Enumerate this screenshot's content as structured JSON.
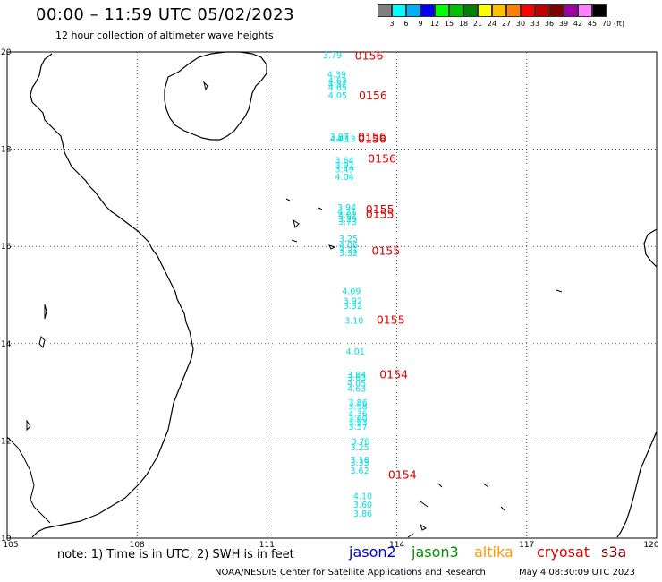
{
  "header": {
    "title": "00:00 – 11:59 UTC 05/02/2023",
    "subtitle": "12 hour collection of altimeter wave heights"
  },
  "color_scale": {
    "unit_label": "(ft)",
    "colors": [
      "#808080",
      "#00ffff",
      "#00b0ff",
      "#0000ff",
      "#00ff00",
      "#00c000",
      "#008000",
      "#ffff00",
      "#ffc000",
      "#ff8000",
      "#ff0000",
      "#c00000",
      "#800000",
      "#a000a0",
      "#ff80ff",
      "#000000"
    ],
    "labels": [
      "3",
      "6",
      "9",
      "12",
      "15",
      "18",
      "21",
      "24",
      "27",
      "30",
      "33",
      "36",
      "39",
      "42",
      "45",
      "70"
    ]
  },
  "axes": {
    "lon_ticks": [
      "105",
      "108",
      "111",
      "114",
      "117",
      "120"
    ],
    "lat_ticks": [
      "20",
      "18",
      "16",
      "14",
      "12",
      "10"
    ]
  },
  "observations": [
    {
      "v": "3.79",
      "lon": 112.5,
      "lat": 19.93
    },
    {
      "v": "4.39",
      "lon": 112.6,
      "lat": 19.53
    },
    {
      "v": "4.63",
      "lon": 112.62,
      "lat": 19.4
    },
    {
      "v": "4.51",
      "lon": 112.62,
      "lat": 19.33
    },
    {
      "v": "4.65",
      "lon": 112.62,
      "lat": 19.26
    },
    {
      "v": "4.05",
      "lon": 112.62,
      "lat": 19.1
    },
    {
      "v": "3.97",
      "lon": 112.66,
      "lat": 18.25
    },
    {
      "v": "4.03",
      "lon": 112.66,
      "lat": 18.2
    },
    {
      "v": "4.13",
      "lon": 112.82,
      "lat": 18.2
    },
    {
      "v": "3.64",
      "lon": 112.78,
      "lat": 17.76
    },
    {
      "v": "3.92",
      "lon": 112.78,
      "lat": 17.66
    },
    {
      "v": "3.49",
      "lon": 112.78,
      "lat": 17.58
    },
    {
      "v": "4.04",
      "lon": 112.78,
      "lat": 17.42
    },
    {
      "v": "3.94",
      "lon": 112.83,
      "lat": 16.8
    },
    {
      "v": "4.21",
      "lon": 112.83,
      "lat": 16.7
    },
    {
      "v": "4.02",
      "lon": 112.85,
      "lat": 16.64
    },
    {
      "v": "3.29",
      "lon": 112.85,
      "lat": 16.56
    },
    {
      "v": "3.73",
      "lon": 112.85,
      "lat": 16.5
    },
    {
      "v": "3.25",
      "lon": 112.87,
      "lat": 16.15
    },
    {
      "v": "4.06",
      "lon": 112.87,
      "lat": 16.02
    },
    {
      "v": "3.21",
      "lon": 112.87,
      "lat": 15.92
    },
    {
      "v": "3.32",
      "lon": 112.87,
      "lat": 15.86
    },
    {
      "v": "4.09",
      "lon": 112.94,
      "lat": 15.07
    },
    {
      "v": "3.92",
      "lon": 112.97,
      "lat": 14.87
    },
    {
      "v": "3.32",
      "lon": 112.97,
      "lat": 14.77
    },
    {
      "v": "3.10",
      "lon": 113.0,
      "lat": 14.47
    },
    {
      "v": "4.01",
      "lon": 113.03,
      "lat": 13.83
    },
    {
      "v": "3.84",
      "lon": 113.06,
      "lat": 13.35
    },
    {
      "v": "3.63",
      "lon": 113.06,
      "lat": 13.3
    },
    {
      "v": "4.05",
      "lon": 113.06,
      "lat": 13.18
    },
    {
      "v": "4.63",
      "lon": 113.06,
      "lat": 13.07
    },
    {
      "v": "3.86",
      "lon": 113.09,
      "lat": 12.78
    },
    {
      "v": "3.98",
      "lon": 113.09,
      "lat": 12.7
    },
    {
      "v": "4.36",
      "lon": 113.09,
      "lat": 12.55
    },
    {
      "v": "3.60",
      "lon": 113.09,
      "lat": 12.45
    },
    {
      "v": "3.93",
      "lon": 113.09,
      "lat": 12.38
    },
    {
      "v": "3.57",
      "lon": 113.09,
      "lat": 12.28
    },
    {
      "v": "3.78",
      "lon": 113.15,
      "lat": 11.98
    },
    {
      "v": "3.25",
      "lon": 113.13,
      "lat": 11.86
    },
    {
      "v": "3.18",
      "lon": 113.13,
      "lat": 11.6
    },
    {
      "v": "3.35",
      "lon": 113.13,
      "lat": 11.55
    },
    {
      "v": "3.62",
      "lon": 113.13,
      "lat": 11.38
    },
    {
      "v": "4.10",
      "lon": 113.2,
      "lat": 10.86
    },
    {
      "v": "3.60",
      "lon": 113.2,
      "lat": 10.68
    },
    {
      "v": "3.86",
      "lon": 113.2,
      "lat": 10.5
    }
  ],
  "passes": [
    {
      "id": "0156",
      "lon": 113.03,
      "lat": 19.92
    },
    {
      "id": "0156",
      "lon": 113.12,
      "lat": 19.1
    },
    {
      "id": "0156",
      "lon": 113.1,
      "lat": 18.25
    },
    {
      "id": "0156",
      "lon": 113.1,
      "lat": 18.2
    },
    {
      "id": "0156",
      "lon": 113.33,
      "lat": 17.8
    },
    {
      "id": "0155",
      "lon": 113.28,
      "lat": 16.76
    },
    {
      "id": "0155",
      "lon": 113.28,
      "lat": 16.66
    },
    {
      "id": "0155",
      "lon": 113.42,
      "lat": 15.9
    },
    {
      "id": "0155",
      "lon": 113.53,
      "lat": 14.48
    },
    {
      "id": "0154",
      "lon": 113.6,
      "lat": 13.36
    },
    {
      "id": "0154",
      "lon": 113.8,
      "lat": 11.3
    }
  ],
  "legend": {
    "note": "note: 1) Time is in UTC; 2) SWH is in feet",
    "satellites": [
      {
        "name": "jason2",
        "color": "#0000e0"
      },
      {
        "name": "jason3",
        "color": "#009000"
      },
      {
        "name": "altika",
        "color": "#ff9900"
      },
      {
        "name": "cryosat",
        "color": "#e00000"
      },
      {
        "name": "s3a",
        "color": "#800000"
      }
    ]
  },
  "footer": {
    "credit": "NOAA/NESDIS Center for Satellite Applications and Research",
    "timestamp": "May  4 08:30:09 UTC 2023"
  }
}
